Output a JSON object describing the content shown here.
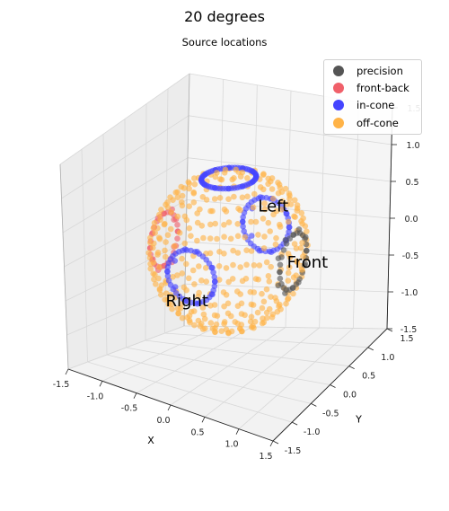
{
  "chart_data": {
    "type": "scatter",
    "plot": "3d",
    "title": "20 degrees",
    "subtitle": "Source locations",
    "xlabel": "X",
    "ylabel": "Y",
    "zlabel": "",
    "xlim": [
      -1.5,
      1.5
    ],
    "ylim": [
      -1.5,
      1.5
    ],
    "zlim": [
      -1.5,
      1.5
    ],
    "xticks": [
      "-1.5",
      "-1.0",
      "-0.5",
      "0.0",
      "0.5",
      "1.0",
      "1.5"
    ],
    "yticks": [
      "-1.5",
      "-1.0",
      "-0.5",
      "0.0",
      "0.5",
      "1.0",
      "1.5"
    ],
    "zticks": [
      "-1.5",
      "-1.0",
      "-0.5",
      "0.0",
      "0.5",
      "1.0",
      "1.5"
    ],
    "grid": true,
    "legend_position": "top-right",
    "sphere_radius": 1,
    "series": [
      {
        "name": "precision",
        "color": "#555555",
        "marker": "circle",
        "region": "ring of radius 20 degrees around the Front direction"
      },
      {
        "name": "front-back",
        "color": "#f0606a",
        "marker": "circle",
        "region": "ring of radius 20 degrees around the back direction"
      },
      {
        "name": "in-cone",
        "color": "#4444ff",
        "marker": "circle",
        "region": "rings at 20 degrees from the left-right axis and from the top"
      },
      {
        "name": "off-cone",
        "color": "#ffb347",
        "marker": "circle",
        "region": "all other source locations on the unit sphere"
      }
    ],
    "annotations": [
      {
        "text": "Left",
        "direction": "+Y"
      },
      {
        "text": "Front",
        "direction": "+X"
      },
      {
        "text": "Right",
        "direction": "-Y"
      }
    ]
  }
}
